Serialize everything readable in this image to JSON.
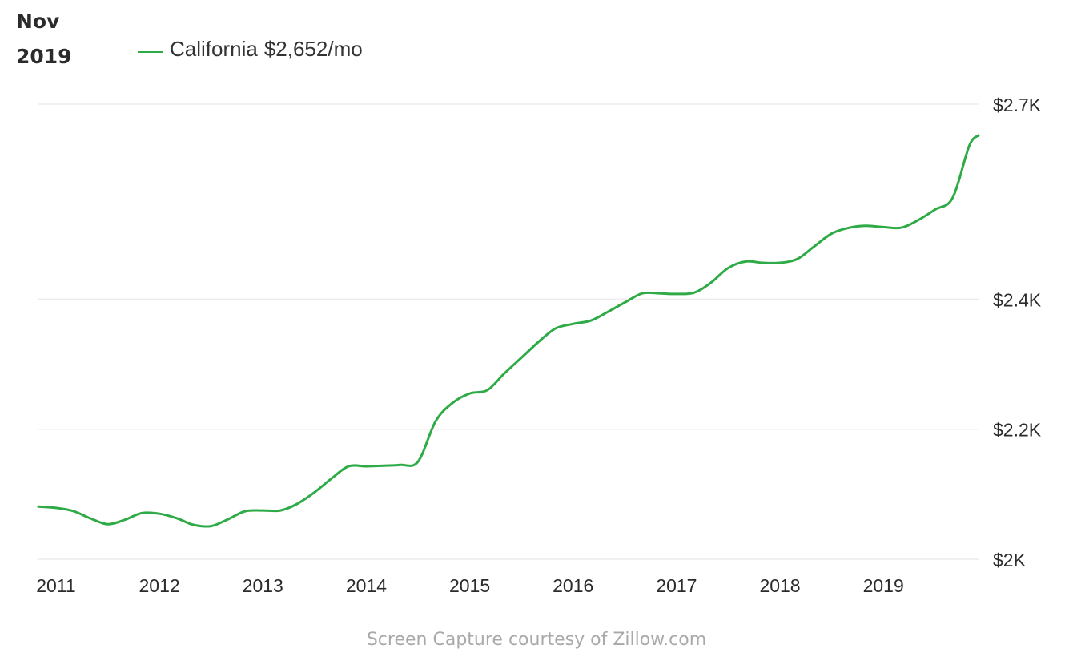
{
  "header": {
    "month": "Nov",
    "year": "2019"
  },
  "legend": {
    "series_name": "California",
    "value": "$2,652/mo",
    "color": "#2eab47"
  },
  "footer": {
    "credit": "Screen Capture courtesy of Zillow.com"
  },
  "chart_data": {
    "type": "line",
    "title": "",
    "xlabel": "",
    "ylabel": "",
    "xlim": [
      2010.83,
      2019.92
    ],
    "ylim": [
      2000,
      2700
    ],
    "x_ticks": [
      2011,
      2012,
      2013,
      2014,
      2015,
      2016,
      2017,
      2018,
      2019
    ],
    "x_tick_labels": [
      "2011",
      "2012",
      "2013",
      "2014",
      "2015",
      "2016",
      "2017",
      "2018",
      "2019"
    ],
    "y_ticks": [
      2000,
      2200,
      2400,
      2700
    ],
    "y_tick_labels": [
      "$2K",
      "$2.2K",
      "$2.4K",
      "$2.7K"
    ],
    "grid": true,
    "legend_position": "top-left",
    "series": [
      {
        "name": "California",
        "color": "#2eab47",
        "x": [
          2010.83,
          2011.0,
          2011.17,
          2011.33,
          2011.5,
          2011.67,
          2011.83,
          2012.0,
          2012.17,
          2012.33,
          2012.5,
          2012.67,
          2012.83,
          2013.0,
          2013.17,
          2013.33,
          2013.5,
          2013.67,
          2013.83,
          2014.0,
          2014.17,
          2014.33,
          2014.5,
          2014.67,
          2014.83,
          2015.0,
          2015.17,
          2015.33,
          2015.5,
          2015.67,
          2015.83,
          2016.0,
          2016.17,
          2016.33,
          2016.5,
          2016.67,
          2016.83,
          2017.0,
          2017.17,
          2017.33,
          2017.5,
          2017.67,
          2017.83,
          2018.0,
          2018.17,
          2018.33,
          2018.5,
          2018.67,
          2018.83,
          2019.0,
          2019.17,
          2019.33,
          2019.5,
          2019.67,
          2019.83,
          2019.92
        ],
        "y": [
          2081,
          2079,
          2074,
          2063,
          2054,
          2061,
          2071,
          2070,
          2063,
          2053,
          2051,
          2062,
          2074,
          2075,
          2075,
          2085,
          2103,
          2125,
          2143,
          2143,
          2144,
          2145,
          2150,
          2212,
          2240,
          2255,
          2260,
          2285,
          2310,
          2335,
          2355,
          2362,
          2367,
          2380,
          2395,
          2409,
          2409,
          2408,
          2410,
          2425,
          2448,
          2458,
          2456,
          2456,
          2462,
          2481,
          2501,
          2510,
          2513,
          2511,
          2510,
          2521,
          2538,
          2556,
          2636,
          2652
        ]
      }
    ]
  }
}
